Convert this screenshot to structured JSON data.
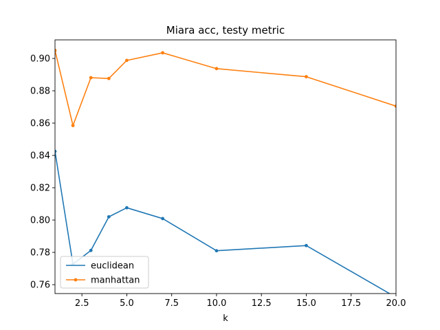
{
  "chart_data": {
    "type": "line",
    "title": "Miara acc, testy metric",
    "xlabel": "k",
    "ylabel": "",
    "xlim": [
      1,
      20
    ],
    "ylim": [
      0.7545,
      0.9115
    ],
    "xticks": [
      2.5,
      5.0,
      7.5,
      10.0,
      12.5,
      15.0,
      17.5,
      20.0
    ],
    "xtick_labels": [
      "2.5",
      "5.0",
      "7.5",
      "10.0",
      "12.5",
      "15.0",
      "17.5",
      "20.0"
    ],
    "yticks": [
      0.76,
      0.78,
      0.8,
      0.82,
      0.84,
      0.86,
      0.88,
      0.9
    ],
    "ytick_labels": [
      "0.76",
      "0.78",
      "0.80",
      "0.82",
      "0.84",
      "0.86",
      "0.88",
      "0.90"
    ],
    "grid": false,
    "legend_position": "lower-left",
    "series": [
      {
        "name": "euclidean",
        "color": "#1f77b4",
        "x": [
          1,
          2,
          3,
          4,
          5,
          7,
          10,
          15,
          20
        ],
        "y": [
          0.8425,
          0.7727,
          0.7812,
          0.802,
          0.8076,
          0.8009,
          0.781,
          0.7842,
          0.7522
        ]
      },
      {
        "name": "manhattan",
        "color": "#ff7f0e",
        "x": [
          1,
          2,
          3,
          4,
          5,
          7,
          10,
          15,
          20
        ],
        "y": [
          0.905,
          0.8585,
          0.8881,
          0.8876,
          0.8988,
          0.9035,
          0.8937,
          0.8887,
          0.8705
        ]
      }
    ]
  }
}
